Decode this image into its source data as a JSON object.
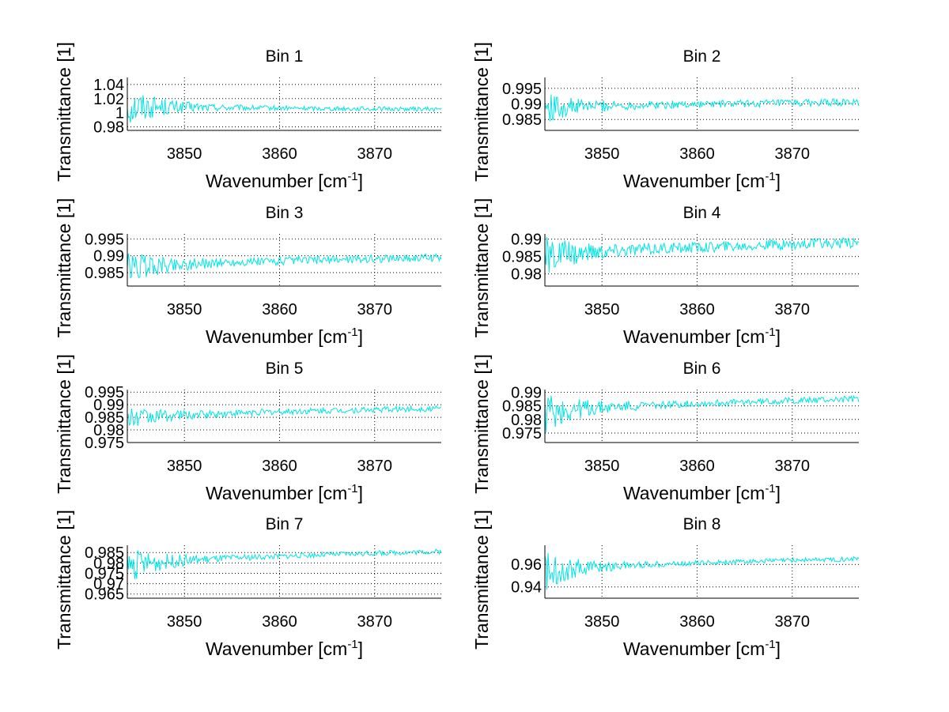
{
  "chart_data": [
    {
      "type": "line",
      "title": "Bin 1",
      "xlabel": "Wavenumber [cm",
      "xlabel_sup": "-1",
      "xlabel_end": "]",
      "ylabel": "Transmittance [1]",
      "xlim": [
        3844,
        3877
      ],
      "ylim": [
        0.975,
        1.05
      ],
      "xticks": [
        3850,
        3860,
        3870
      ],
      "yticks": [
        0.98,
        1,
        1.02,
        1.04
      ],
      "ytick_labels": [
        "0.98",
        "1",
        "1.02",
        "1.04"
      ],
      "grid": true,
      "series": [
        {
          "name": "transmittance",
          "color": "#00e5e5",
          "baseline": 1.01,
          "noise_start": 0.03,
          "noise_end": 0.003,
          "trend_end": 1.005,
          "dip_at_end": 1.0
        }
      ]
    },
    {
      "type": "line",
      "title": "Bin 2",
      "xlabel": "Wavenumber [cm",
      "xlabel_sup": "-1",
      "xlabel_end": "]",
      "ylabel": "Transmittance [1]",
      "xlim": [
        3844,
        3877
      ],
      "ylim": [
        0.9815,
        0.9985
      ],
      "xticks": [
        3850,
        3860,
        3870
      ],
      "yticks": [
        0.985,
        0.99,
        0.995
      ],
      "ytick_labels": [
        "0.985",
        "0.99",
        "0.995"
      ],
      "grid": true,
      "series": [
        {
          "name": "transmittance",
          "color": "#00e5e5",
          "baseline": 0.9885,
          "noise_start": 0.005,
          "noise_end": 0.0012,
          "trend_end": 0.9905
        }
      ]
    },
    {
      "type": "line",
      "title": "Bin 3",
      "xlabel": "Wavenumber [cm",
      "xlabel_sup": "-1",
      "xlabel_end": "]",
      "ylabel": "Transmittance [1]",
      "xlim": [
        3844,
        3877
      ],
      "ylim": [
        0.981,
        0.9965
      ],
      "xticks": [
        3850,
        3860,
        3870
      ],
      "yticks": [
        0.985,
        0.99,
        0.995
      ],
      "ytick_labels": [
        "0.985",
        "0.99",
        "0.995"
      ],
      "grid": true,
      "series": [
        {
          "name": "transmittance",
          "color": "#00e5e5",
          "baseline": 0.986,
          "noise_start": 0.005,
          "noise_end": 0.0012,
          "trend_end": 0.9895
        }
      ]
    },
    {
      "type": "line",
      "title": "Bin 4",
      "xlabel": "Wavenumber [cm",
      "xlabel_sup": "-1",
      "xlabel_end": "]",
      "ylabel": "Transmittance [1]",
      "xlim": [
        3844,
        3877
      ],
      "ylim": [
        0.9765,
        0.9915
      ],
      "xticks": [
        3850,
        3860,
        3870
      ],
      "yticks": [
        0.98,
        0.985,
        0.99
      ],
      "ytick_labels": [
        "0.98",
        "0.985",
        "0.99"
      ],
      "grid": true,
      "series": [
        {
          "name": "transmittance",
          "color": "#00e5e5",
          "baseline": 0.9845,
          "noise_start": 0.006,
          "noise_end": 0.0015,
          "trend_end": 0.989
        }
      ]
    },
    {
      "type": "line",
      "title": "Bin 5",
      "xlabel": "Wavenumber [cm",
      "xlabel_sup": "-1",
      "xlabel_end": "]",
      "ylabel": "Transmittance [1]",
      "xlim": [
        3844,
        3877
      ],
      "ylim": [
        0.975,
        0.996
      ],
      "xticks": [
        3850,
        3860,
        3870
      ],
      "yticks": [
        0.975,
        0.98,
        0.985,
        0.99,
        0.995
      ],
      "ytick_labels": [
        "0.975",
        "0.98",
        "0.985",
        "0.99",
        "0.995"
      ],
      "grid": true,
      "series": [
        {
          "name": "transmittance",
          "color": "#00e5e5",
          "baseline": 0.984,
          "noise_start": 0.005,
          "noise_end": 0.0012,
          "trend_end": 0.9885
        }
      ]
    },
    {
      "type": "line",
      "title": "Bin 6",
      "xlabel": "Wavenumber [cm",
      "xlabel_sup": "-1",
      "xlabel_end": "]",
      "ylabel": "Transmittance [1]",
      "xlim": [
        3844,
        3877
      ],
      "ylim": [
        0.9715,
        0.991
      ],
      "xticks": [
        3850,
        3860,
        3870
      ],
      "yticks": [
        0.975,
        0.98,
        0.985,
        0.99
      ],
      "ytick_labels": [
        "0.975",
        "0.98",
        "0.985",
        "0.99"
      ],
      "grid": true,
      "series": [
        {
          "name": "transmittance",
          "color": "#00e5e5",
          "baseline": 0.982,
          "noise_start": 0.008,
          "noise_end": 0.0012,
          "trend_end": 0.9875
        }
      ]
    },
    {
      "type": "line",
      "title": "Bin 7",
      "xlabel": "Wavenumber [cm",
      "xlabel_sup": "-1",
      "xlabel_end": "]",
      "ylabel": "Transmittance [1]",
      "xlim": [
        3844,
        3877
      ],
      "ylim": [
        0.963,
        0.9885
      ],
      "xticks": [
        3850,
        3860,
        3870
      ],
      "yticks": [
        0.965,
        0.97,
        0.975,
        0.98,
        0.985
      ],
      "ytick_labels": [
        "0.965",
        "0.97",
        "0.975",
        "0.98",
        "0.985"
      ],
      "grid": true,
      "series": [
        {
          "name": "transmittance",
          "color": "#00e5e5",
          "baseline": 0.978,
          "noise_start": 0.009,
          "noise_end": 0.0012,
          "trend_end": 0.9855
        }
      ]
    },
    {
      "type": "line",
      "title": "Bin 8",
      "xlabel": "Wavenumber [cm",
      "xlabel_sup": "-1",
      "xlabel_end": "]",
      "ylabel": "Transmittance [1]",
      "xlim": [
        3844,
        3877
      ],
      "ylim": [
        0.93,
        0.977
      ],
      "xticks": [
        3850,
        3860,
        3870
      ],
      "yticks": [
        0.94,
        0.96
      ],
      "ytick_labels": [
        "0.94",
        "0.96"
      ],
      "grid": true,
      "series": [
        {
          "name": "transmittance",
          "color": "#00e5e5",
          "baseline": 0.953,
          "noise_start": 0.018,
          "noise_end": 0.002,
          "trend_end": 0.965
        }
      ]
    }
  ]
}
